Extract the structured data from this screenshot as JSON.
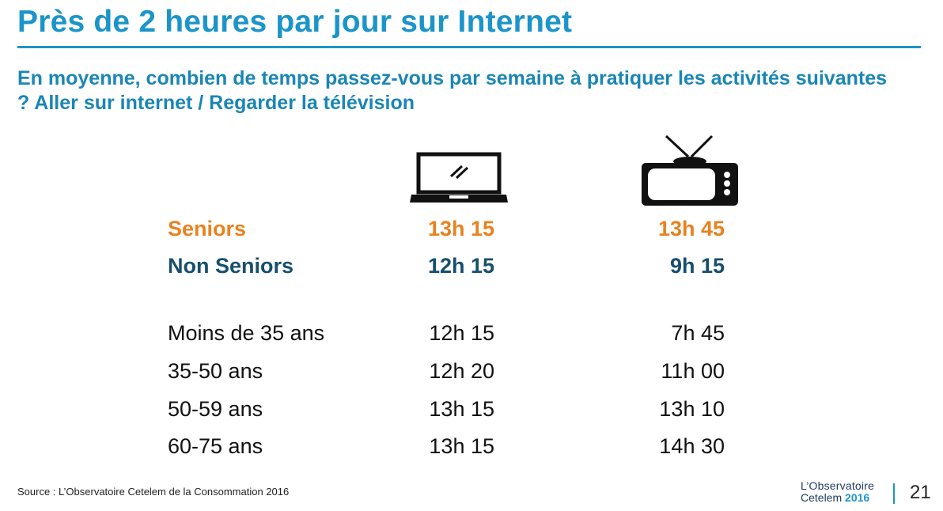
{
  "title": "Près de 2 heures par jour sur Internet",
  "subtitle": "En moyenne, combien de temps passez-vous par semaine à pratiquer les activités suivantes ? Aller sur internet / Regarder la télévision",
  "columns": {
    "internet_icon": "laptop-icon",
    "tv_icon": "television-icon"
  },
  "rows": [
    {
      "label": "Seniors",
      "internet": "13h 15",
      "tv": "13h 45",
      "color": "#e8821f"
    },
    {
      "label": "Non Seniors",
      "internet": "12h 15",
      "tv": "9h 15",
      "color": "#174f6d"
    },
    {
      "label": "Moins de 35 ans",
      "internet": "12h 15",
      "tv": "7h 45"
    },
    {
      "label": "35-50 ans",
      "internet": "12h 20",
      "tv": "11h 00"
    },
    {
      "label": "50-59 ans",
      "internet": "13h 15",
      "tv": "13h 10"
    },
    {
      "label": "60-75 ans",
      "internet": "13h 15",
      "tv": "14h 30"
    }
  ],
  "footer": {
    "source": "Source : L’Observatoire Cetelem de la Consommation 2016",
    "logo_line1": "L’Observatoire",
    "logo_line2": "Cetelem",
    "logo_year": "2016",
    "page_number": "21"
  },
  "colors": {
    "title": "#1b95c9",
    "subtitle": "#1a86b5",
    "seniors": "#e8821f",
    "non_seniors": "#174f6d"
  }
}
